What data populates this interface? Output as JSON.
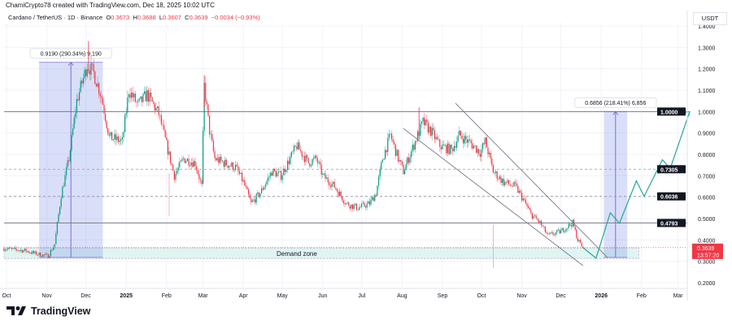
{
  "header": {
    "credit": "ChamiCrypto78 created with TradingView.com, Dec 18, 2025 10:02 UTC",
    "symbol": "Cardano / TetherUS · 1D · Binance",
    "open_label": "O",
    "open": "0.3673",
    "high_label": "H",
    "high": "0.3688",
    "low_label": "L",
    "low": "0.3607",
    "close_label": "C",
    "close": "0.3639",
    "change": "−0.0034 (−0.93%)"
  },
  "price_axis": {
    "unit": "USDT",
    "ticks": [
      "1.4000",
      "1.3000",
      "1.2000",
      "1.1000",
      "1.0000",
      "0.9000",
      "0.8000",
      "0.7000",
      "0.6000",
      "0.5000",
      "0.4000",
      "0.3000",
      "0.2000"
    ],
    "tick_values": [
      1.4,
      1.3,
      1.2,
      1.1,
      1.0,
      0.9,
      0.8,
      0.7,
      0.6,
      0.5,
      0.4,
      0.3,
      0.2
    ],
    "current_price": "0.3639",
    "countdown": "13:57:20"
  },
  "time_axis": {
    "labels": [
      "Oct",
      "Nov",
      "Dec",
      "2025",
      "Feb",
      "Mar",
      "Apr",
      "May",
      "Jun",
      "Jul",
      "Aug",
      "Sep",
      "Oct",
      "Nov",
      "Dec",
      "2026",
      "Feb",
      "Mar"
    ],
    "dates": [
      "2024-10-01",
      "2024-11-01",
      "2024-12-01",
      "2025-01-01",
      "2025-02-01",
      "2025-03-01",
      "2025-04-01",
      "2025-05-01",
      "2025-06-01",
      "2025-07-01",
      "2025-08-01",
      "2025-09-01",
      "2025-10-01",
      "2025-11-01",
      "2025-12-01",
      "2026-01-01",
      "2026-02-01",
      "2026-03-01"
    ]
  },
  "chart_data": {
    "type": "candlestick",
    "symbol": "ADAUSDT",
    "interval": "1D",
    "ylim": [
      0.2,
      1.4
    ],
    "grid": true,
    "colors": {
      "up": "#089981",
      "down": "#f23645",
      "projection": "#26a69a",
      "measure": "#7b6fd6",
      "demand": "#b2ebf2"
    },
    "close_path": [
      [
        "2024-09-29",
        0.36
      ],
      [
        "2024-10-15",
        0.35
      ],
      [
        "2024-10-24",
        0.335
      ],
      [
        "2024-11-02",
        0.325
      ],
      [
        "2024-11-07",
        0.38
      ],
      [
        "2024-11-12",
        0.61
      ],
      [
        "2024-11-18",
        0.78
      ],
      [
        "2024-11-24",
        1.05
      ],
      [
        "2024-12-02",
        1.22
      ],
      [
        "2024-12-07",
        1.18
      ],
      [
        "2024-12-13",
        1.07
      ],
      [
        "2024-12-19",
        0.88
      ],
      [
        "2024-12-29",
        0.86
      ],
      [
        "2025-01-03",
        1.1
      ],
      [
        "2025-01-10",
        1.03
      ],
      [
        "2025-01-17",
        1.08
      ],
      [
        "2025-01-26",
        0.99
      ],
      [
        "2025-02-02",
        0.82
      ],
      [
        "2025-02-07",
        0.7
      ],
      [
        "2025-02-14",
        0.78
      ],
      [
        "2025-02-23",
        0.76
      ],
      [
        "2025-02-28",
        0.65
      ],
      [
        "2025-03-02",
        1.12
      ],
      [
        "2025-03-06",
        0.91
      ],
      [
        "2025-03-10",
        0.78
      ],
      [
        "2025-03-17",
        0.76
      ],
      [
        "2025-03-26",
        0.74
      ],
      [
        "2025-04-01",
        0.67
      ],
      [
        "2025-04-07",
        0.57
      ],
      [
        "2025-04-14",
        0.62
      ],
      [
        "2025-04-23",
        0.72
      ],
      [
        "2025-04-30",
        0.7
      ],
      [
        "2025-05-12",
        0.84
      ],
      [
        "2025-05-21",
        0.76
      ],
      [
        "2025-05-27",
        0.78
      ],
      [
        "2025-06-01",
        0.7
      ],
      [
        "2025-06-10",
        0.65
      ],
      [
        "2025-06-19",
        0.57
      ],
      [
        "2025-06-28",
        0.55
      ],
      [
        "2025-07-07",
        0.57
      ],
      [
        "2025-07-12",
        0.62
      ],
      [
        "2025-07-17",
        0.78
      ],
      [
        "2025-07-23",
        0.89
      ],
      [
        "2025-07-29",
        0.78
      ],
      [
        "2025-08-02",
        0.72
      ],
      [
        "2025-08-11",
        0.86
      ],
      [
        "2025-08-17",
        0.95
      ],
      [
        "2025-08-23",
        0.91
      ],
      [
        "2025-08-30",
        0.84
      ],
      [
        "2025-09-08",
        0.82
      ],
      [
        "2025-09-14",
        0.89
      ],
      [
        "2025-09-23",
        0.85
      ],
      [
        "2025-09-30",
        0.81
      ],
      [
        "2025-10-04",
        0.86
      ],
      [
        "2025-10-10",
        0.72
      ],
      [
        "2025-10-18",
        0.67
      ],
      [
        "2025-10-27",
        0.65
      ],
      [
        "2025-11-02",
        0.59
      ],
      [
        "2025-11-08",
        0.52
      ],
      [
        "2025-11-15",
        0.48
      ],
      [
        "2025-11-21",
        0.42
      ],
      [
        "2025-12-01",
        0.44
      ],
      [
        "2025-12-10",
        0.48
      ],
      [
        "2025-12-14",
        0.4
      ],
      [
        "2025-12-18",
        0.3639
      ]
    ],
    "wicks": [
      [
        "2024-12-03",
        1.33,
        "high"
      ],
      [
        "2025-02-03",
        0.51,
        "low"
      ],
      [
        "2025-03-02",
        1.17,
        "high"
      ],
      [
        "2025-08-14",
        1.02,
        "high"
      ],
      [
        "2025-10-10",
        0.27,
        "low"
      ]
    ],
    "horizontal_levels": [
      {
        "price": 1.0,
        "label": "1.0000",
        "style": "solid"
      },
      {
        "price": 0.7305,
        "label": "0.7305",
        "style": "dashed"
      },
      {
        "price": 0.6036,
        "label": "0.6036",
        "style": "dashed"
      },
      {
        "price": 0.4793,
        "label": "0.4793",
        "style": "solid"
      }
    ],
    "demand_zone": {
      "label": "Demand zone",
      "from": "2024-09-29",
      "to": "2026-01-30",
      "top": 0.363,
      "bottom": 0.313
    },
    "channel": {
      "upper": [
        [
          "2025-09-11",
          1.039
        ],
        [
          "2026-01-06",
          0.317
        ]
      ],
      "lower": [
        [
          "2025-08-02",
          0.921
        ],
        [
          "2025-12-18",
          0.28
        ]
      ]
    },
    "measurements": [
      {
        "label": "0.9190 (290.34%) 9,190",
        "from": "2024-10-26",
        "to": "2024-12-14",
        "low": 0.318,
        "high": 1.23
      },
      {
        "label": "0.6856 (218.41%) 6,856",
        "from": "2026-01-03",
        "to": "2026-01-21",
        "low": 0.318,
        "high": 1.0
      }
    ],
    "projection": [
      [
        "2025-12-18",
        0.364
      ],
      [
        "2025-12-28",
        0.315
      ],
      [
        "2026-01-08",
        0.527
      ],
      [
        "2026-01-15",
        0.478
      ],
      [
        "2026-01-28",
        0.676
      ],
      [
        "2026-02-03",
        0.604
      ],
      [
        "2026-02-17",
        0.775
      ],
      [
        "2026-02-23",
        0.733
      ],
      [
        "2026-03-10",
        1.0
      ]
    ]
  },
  "footer": {
    "brand": "TradingView"
  }
}
